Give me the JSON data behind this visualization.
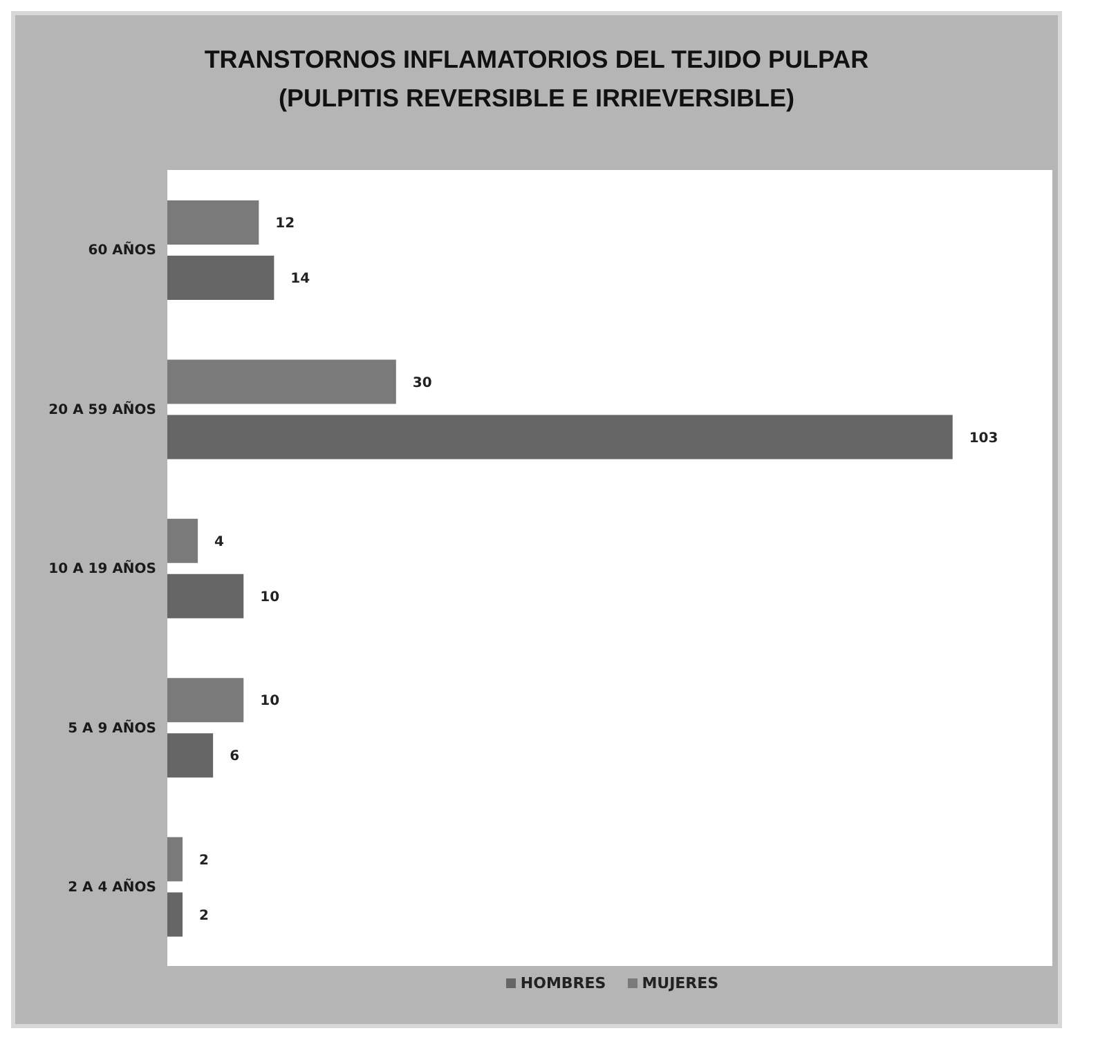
{
  "chart_data": {
    "type": "bar",
    "orientation": "horizontal",
    "title": "TRANSTORNOS INFLAMATORIOS DEL TEJIDO PULPAR\n(PULPITIS REVERSIBLE E IRRIEVERSIBLE)",
    "categories": [
      "60 AÑOS",
      "20 A 59 AÑOS",
      "10 A 19 AÑOS",
      "5 A 9 AÑOS",
      "2 A 4 AÑOS"
    ],
    "series": [
      {
        "name": "HOMBRES",
        "color": "#666666",
        "values": [
          14,
          103,
          10,
          6,
          2
        ]
      },
      {
        "name": "MUJERES",
        "color": "#7a7a7a",
        "values": [
          12,
          30,
          4,
          10,
          2
        ]
      }
    ],
    "data_labels": true,
    "legend": "bottom",
    "grid": false
  }
}
